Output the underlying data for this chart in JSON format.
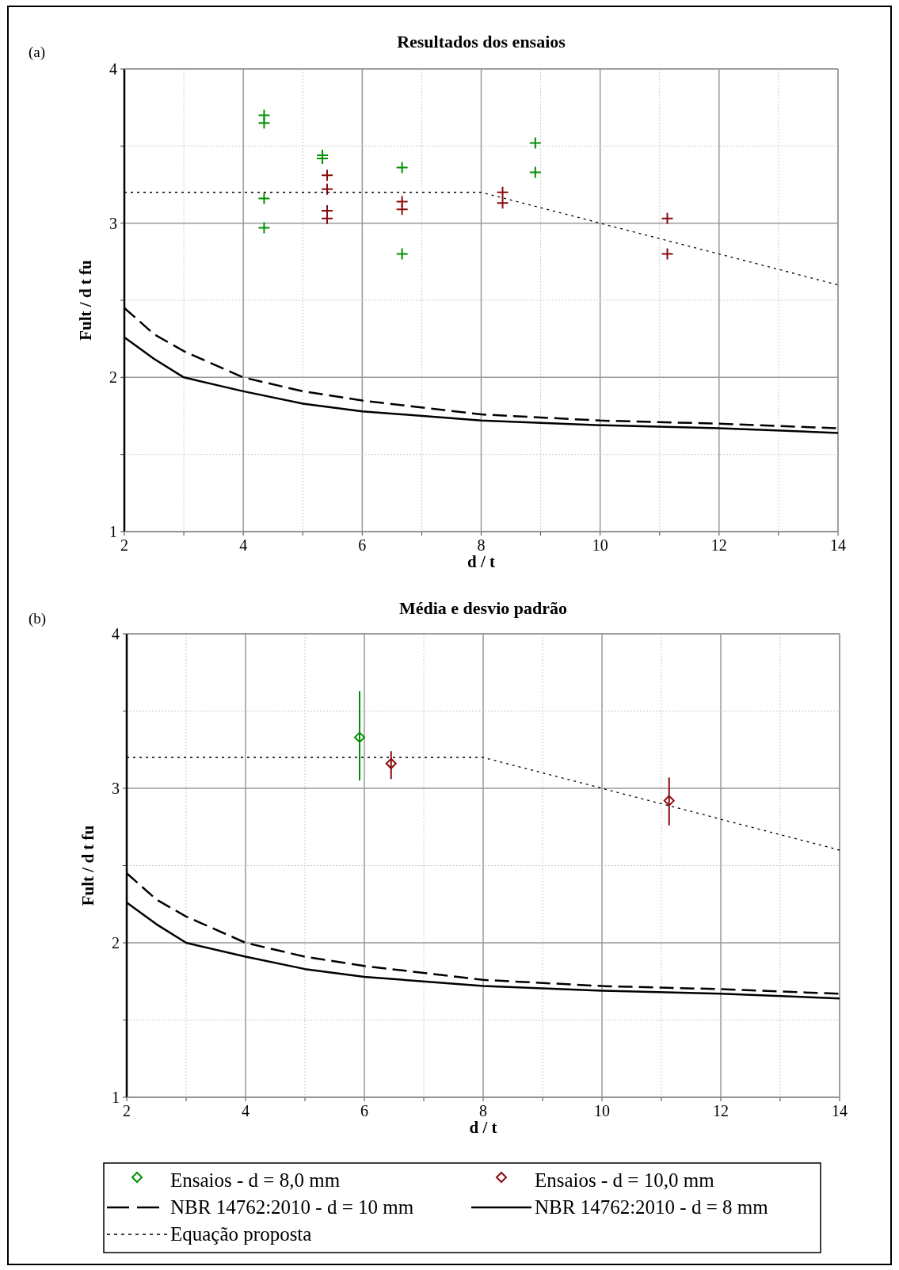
{
  "chart_data": [
    {
      "type": "scatter",
      "title": "Resultados dos ensaios",
      "xlabel": "d / t",
      "ylabel": "Fult / d t fu",
      "annotations": [
        "(a)"
      ],
      "xlim": [
        2,
        14
      ],
      "ylim": [
        1,
        4
      ],
      "xticks": [
        2,
        {
          "value": 3,
          "label": null
        },
        4,
        {
          "value": 5,
          "label": null
        },
        6,
        {
          "value": 7,
          "label": null
        },
        8,
        {
          "value": 9,
          "label": null
        },
        10,
        {
          "value": 11,
          "label": null
        },
        12,
        {
          "value": 13,
          "label": null
        },
        14
      ],
      "yticks": [
        1,
        {
          "value": 1.5,
          "label": null
        },
        2,
        {
          "value": 2.5,
          "label": null
        },
        3,
        {
          "value": 3.5,
          "label": null
        },
        4
      ],
      "grid": true,
      "legend": false,
      "series": [
        {
          "color": "#009000",
          "marker": "cross",
          "x": [
            4.35,
            4.35,
            4.35,
            4.35,
            5.33,
            5.33,
            6.67,
            6.67,
            8.91,
            8.91
          ],
          "values": [
            3.7,
            3.65,
            3.16,
            2.97,
            3.44,
            3.42,
            3.36,
            2.8,
            3.52,
            3.33
          ]
        },
        {
          "color": "#8b0a0a",
          "marker": "cross",
          "x": [
            5.41,
            5.41,
            5.41,
            5.41,
            6.67,
            6.67,
            8.36,
            8.36,
            11.13,
            11.13
          ],
          "values": [
            3.31,
            3.22,
            3.08,
            3.03,
            3.14,
            3.09,
            3.2,
            3.13,
            3.03,
            2.8
          ]
        },
        {
          "type": "line",
          "color": "#000000",
          "line_style": "dashed",
          "marker": "none",
          "x": [
            2,
            2.5,
            3,
            4,
            5,
            6,
            8,
            10,
            12,
            14
          ],
          "values": [
            2.45,
            2.28,
            2.17,
            2.0,
            1.91,
            1.85,
            1.76,
            1.72,
            1.7,
            1.67
          ]
        },
        {
          "type": "line",
          "color": "#000000",
          "line_style": "solid",
          "marker": "none",
          "x": [
            2,
            2.5,
            3,
            4,
            5,
            6,
            8,
            10,
            12,
            14
          ],
          "values": [
            2.26,
            2.12,
            2.0,
            1.91,
            1.83,
            1.78,
            1.72,
            1.69,
            1.67,
            1.64
          ]
        },
        {
          "type": "line",
          "color": "#000000",
          "line_style": "dotted",
          "marker": "none",
          "x": [
            2,
            8,
            14
          ],
          "values": [
            3.2,
            3.2,
            2.6
          ]
        }
      ]
    },
    {
      "type": "scatter",
      "title": "Média e desvio padrão",
      "xlabel": "d / t",
      "ylabel": "Fult / d t fu",
      "annotations": [
        "(b)"
      ],
      "xlim": [
        2,
        14
      ],
      "ylim": [
        1,
        4
      ],
      "xticks": [
        2,
        {
          "value": 3,
          "label": null
        },
        4,
        {
          "value": 5,
          "label": null
        },
        6,
        {
          "value": 7,
          "label": null
        },
        8,
        {
          "value": 9,
          "label": null
        },
        10,
        {
          "value": 11,
          "label": null
        },
        12,
        {
          "value": 13,
          "label": null
        },
        14
      ],
      "yticks": [
        1,
        {
          "value": 1.5,
          "label": null
        },
        2,
        {
          "value": 2.5,
          "label": null
        },
        3,
        {
          "value": 3.5,
          "label": null
        },
        4
      ],
      "grid": true,
      "legend": "bottom",
      "series": [
        {
          "name": "Ensaios - d = 8,0 mm",
          "color": "#009000",
          "marker": "diamond",
          "x": [
            5.92
          ],
          "values": [
            3.33
          ],
          "errors": [
            [
              3.05,
              3.63
            ]
          ]
        },
        {
          "name": "Ensaios - d = 10,0 mm",
          "color": "#8b0a0a",
          "marker": "diamond",
          "x": [
            6.45,
            11.13
          ],
          "values": [
            3.16,
            2.92
          ],
          "errors": [
            [
              3.06,
              3.24
            ],
            [
              2.76,
              3.07
            ]
          ]
        },
        {
          "type": "line",
          "name": "NBR 14762:2010 - d = 10 mm",
          "color": "#000000",
          "line_style": "dashed",
          "marker": "none",
          "x": [
            2,
            2.5,
            3,
            4,
            5,
            6,
            8,
            10,
            12,
            14
          ],
          "values": [
            2.45,
            2.28,
            2.17,
            2.0,
            1.91,
            1.85,
            1.76,
            1.72,
            1.7,
            1.67
          ]
        },
        {
          "type": "line",
          "name": "NBR 14762:2010 - d = 8 mm",
          "color": "#000000",
          "line_style": "solid",
          "marker": "none",
          "x": [
            2,
            2.5,
            3,
            4,
            5,
            6,
            8,
            10,
            12,
            14
          ],
          "values": [
            2.26,
            2.12,
            2.0,
            1.91,
            1.83,
            1.78,
            1.72,
            1.69,
            1.67,
            1.64
          ]
        },
        {
          "type": "line",
          "name": "Equação proposta",
          "color": "#000000",
          "line_style": "dotted",
          "marker": "none",
          "x": [
            2,
            8,
            14
          ],
          "values": [
            3.2,
            3.2,
            2.6
          ]
        }
      ]
    }
  ]
}
